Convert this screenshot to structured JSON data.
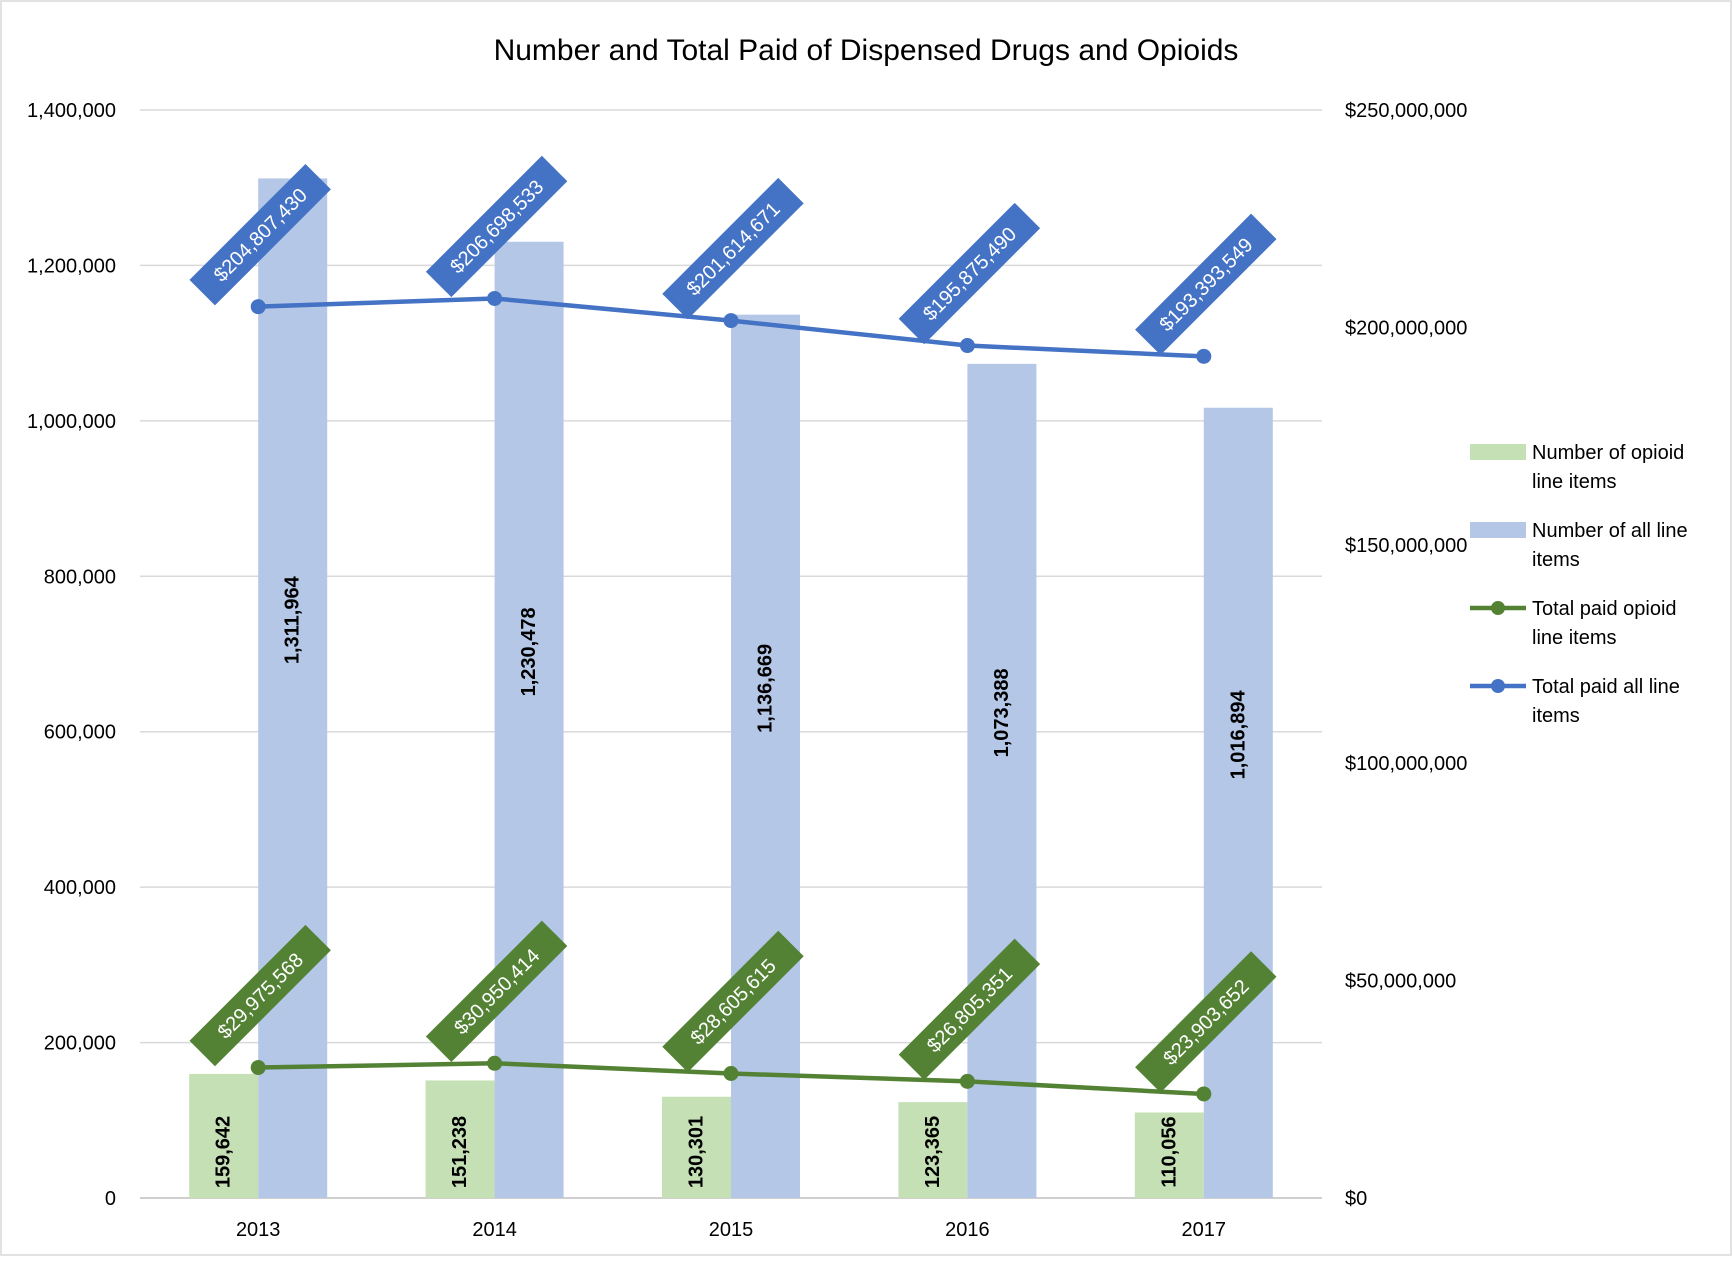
{
  "chart_data": {
    "type": "bar",
    "title": "Number and Total Paid of Dispensed Drugs and Opioids",
    "categories": [
      "2013",
      "2014",
      "2015",
      "2016",
      "2017"
    ],
    "y_left": {
      "ylim": [
        0,
        1400000
      ],
      "ticks": [
        "0",
        "200,000",
        "400,000",
        "600,000",
        "800,000",
        "1,000,000",
        "1,200,000",
        "1,400,000"
      ],
      "tick_values": [
        0,
        200000,
        400000,
        600000,
        800000,
        1000000,
        1200000,
        1400000
      ]
    },
    "y_right": {
      "ylim": [
        0,
        250000000
      ],
      "ticks": [
        "$0",
        "$50,000,000",
        "$100,000,000",
        "$150,000,000",
        "$200,000,000",
        "$250,000,000"
      ],
      "tick_values": [
        0,
        50000000,
        100000000,
        150000000,
        200000000,
        250000000
      ]
    },
    "grid": true,
    "legend_position": "right",
    "series": [
      {
        "name": "Number of opioid line items",
        "kind": "bar",
        "axis": "left",
        "color": "#c5e0b4",
        "values": [
          159642,
          151238,
          130301,
          123365,
          110056
        ],
        "labels": [
          "159,642",
          "151,238",
          "130,301",
          "123,365",
          "110,056"
        ]
      },
      {
        "name": "Number of all line items",
        "kind": "bar",
        "axis": "left",
        "color": "#b4c7e7",
        "values": [
          1311964,
          1230478,
          1136669,
          1073388,
          1016894
        ],
        "labels": [
          "1,311,964",
          "1,230,478",
          "1,136,669",
          "1,073,388",
          "1,016,894"
        ]
      },
      {
        "name": "Total paid opioid line items",
        "kind": "line",
        "axis": "right",
        "color": "#548235",
        "values": [
          29975568,
          30950414,
          28605615,
          26805351,
          23903652
        ],
        "labels": [
          "$29,975,568",
          "$30,950,414",
          "$28,605,615",
          "$26,805,351",
          "$23,903,652"
        ]
      },
      {
        "name": "Total paid all line items",
        "kind": "line",
        "axis": "right",
        "color": "#4472c4",
        "values": [
          204807430,
          206698533,
          201614671,
          195875490,
          193393549
        ],
        "labels": [
          "$204,807,430",
          "$206,698,533",
          "$201,614,671",
          "$195,875,490",
          "$193,393,549"
        ]
      }
    ],
    "legend": [
      {
        "lines": [
          "Number of opioid",
          "line items"
        ]
      },
      {
        "lines": [
          "Number of all line",
          "items"
        ]
      },
      {
        "lines": [
          "Total paid opioid",
          "line items"
        ]
      },
      {
        "lines": [
          "Total paid all line",
          "items"
        ]
      }
    ]
  }
}
